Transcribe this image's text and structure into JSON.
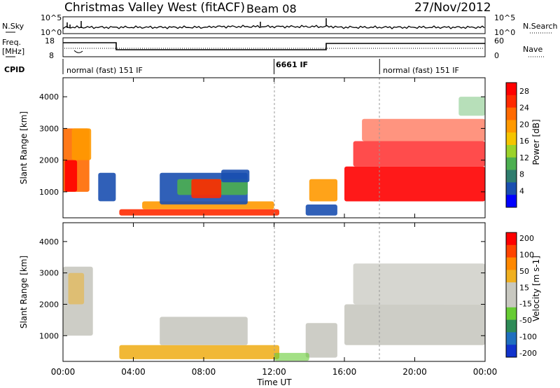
{
  "header": {
    "title": "Christmas Valley West (fitACF)",
    "beam": "Beam 08",
    "date": "27/Nov/2012"
  },
  "strips": {
    "nsky_label": "N.Sky",
    "nsky_ticks": [
      "10^5",
      "10^0"
    ],
    "nsearch_label": "N.Search",
    "freq_label_1": "Freq.",
    "freq_label_2": "[MHz]",
    "freq_ticks": [
      "18",
      "8"
    ],
    "nave_label": "Nave",
    "nave_ticks": [
      "60",
      "0"
    ],
    "cpid_label": "CPID",
    "cpid_segments": [
      "normal (fast) 151 IF",
      "6661 IF",
      "normal (fast) 151 IF"
    ],
    "cpid_change_hours": [
      12,
      18
    ]
  },
  "colors": {
    "power_scale": [
      "#0000ff",
      "#1a4fb0",
      "#2f7d6e",
      "#4caf50",
      "#9bd22a",
      "#f5c400",
      "#ff9900",
      "#ff6a00",
      "#ff2a00",
      "#ff0000"
    ],
    "velocity_scale": [
      "#1133cc",
      "#1f6fbf",
      "#2e8b57",
      "#66cc33",
      "#c8c8c0",
      "#c8c8c0",
      "#f0b020",
      "#ff8800",
      "#ff4400",
      "#ff0000"
    ]
  },
  "chart_data": [
    {
      "type": "heatmap",
      "panel": "power",
      "ylabel": "Slant Range [km]",
      "ylim": [
        180,
        4600
      ],
      "yticks": [
        1000,
        2000,
        3000,
        4000
      ],
      "colorbar_label": "Power [dB]",
      "colorbar_ticks": [
        "4",
        "8",
        "12",
        "16",
        "20",
        "24",
        "28"
      ],
      "colorbar_range": [
        0,
        30
      ]
    },
    {
      "type": "heatmap",
      "panel": "velocity",
      "ylabel": "Slant Range [km]",
      "ylim": [
        180,
        4600
      ],
      "yticks": [
        1000,
        2000,
        3000,
        4000
      ],
      "colorbar_label": "Velocity [m s-1]",
      "colorbar_ticks": [
        "200",
        "100",
        "50",
        "15",
        "-15",
        "-50",
        "-100",
        "-200"
      ],
      "colorbar_range": [
        -250,
        250
      ]
    }
  ],
  "time_axis": {
    "xlabel": "Time UT",
    "xlim_hours": [
      0,
      24
    ],
    "tick_labels": [
      "00:00",
      "04:00",
      "08:00",
      "12:00",
      "16:00",
      "20:00",
      "00:00"
    ]
  }
}
